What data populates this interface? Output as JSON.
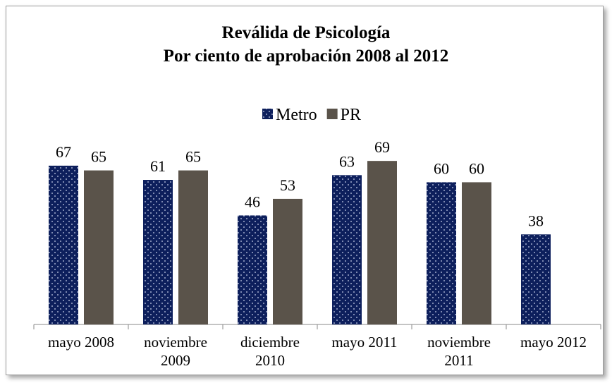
{
  "chart_data": {
    "type": "bar",
    "title": "Reválida de Psicología\nPor ciento de aprobación 2008 al 2012",
    "categories": [
      "mayo 2008",
      "noviembre\n2009",
      "diciembre\n2010",
      "mayo 2011",
      "noviembre\n2011",
      "mayo 2012"
    ],
    "series": [
      {
        "name": "Metro",
        "color": "#0d1f5c",
        "values": [
          67,
          61,
          46,
          63,
          60,
          38
        ]
      },
      {
        "name": "PR",
        "color": "#5a534a",
        "values": [
          65,
          65,
          53,
          69,
          60,
          null
        ]
      }
    ],
    "legend": "top"
  }
}
